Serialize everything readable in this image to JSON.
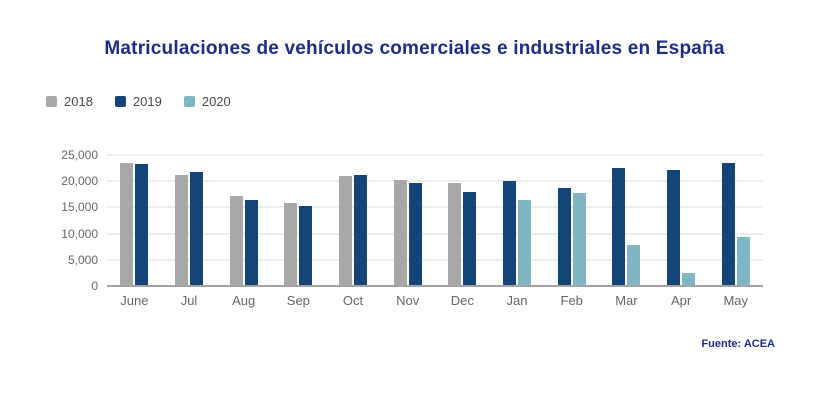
{
  "title": "Matriculaciones de vehículos comerciales e industriales en España",
  "source": "Fuente: ACEA",
  "colors": {
    "title_text": "#1c2d86",
    "source_text": "#1c2d86",
    "axis_text": "#666666",
    "gridline": "#ededed",
    "baseline": "#a3a3a3",
    "series_2018": "#a8a8a8",
    "series_2019": "#134578",
    "series_2020": "#80b5c5",
    "background": "#ffffff"
  },
  "chart_data": {
    "type": "bar",
    "title": "Matriculaciones de vehículos comerciales e industriales en España",
    "source": "Fuente: ACEA",
    "categories": [
      "June",
      "Jul",
      "Aug",
      "Sep",
      "Oct",
      "Nov",
      "Dec",
      "Jan",
      "Feb",
      "Mar",
      "Apr",
      "May"
    ],
    "series": [
      {
        "name": "2018",
        "color": "#a8a8a8",
        "values": [
          23500,
          21200,
          17100,
          15800,
          20900,
          20300,
          19700,
          null,
          null,
          null,
          null,
          null
        ]
      },
      {
        "name": "2019",
        "color": "#134578",
        "values": [
          23300,
          21700,
          16500,
          15200,
          21100,
          19600,
          18000,
          20100,
          18700,
          22600,
          22200,
          23500
        ]
      },
      {
        "name": "2020",
        "color": "#80b5c5",
        "values": [
          null,
          null,
          null,
          null,
          null,
          null,
          null,
          16400,
          17700,
          7800,
          2500,
          9400
        ]
      }
    ],
    "xlabel": "",
    "ylabel": "",
    "ylim": [
      0,
      25000
    ],
    "yticks": [
      25000,
      20000,
      15000,
      10000,
      5000,
      0
    ],
    "ytick_labels": [
      "25,000",
      "20,000",
      "15,000",
      "10,000",
      "5,000",
      "0"
    ],
    "grid": true,
    "legend_position": "top-left"
  }
}
